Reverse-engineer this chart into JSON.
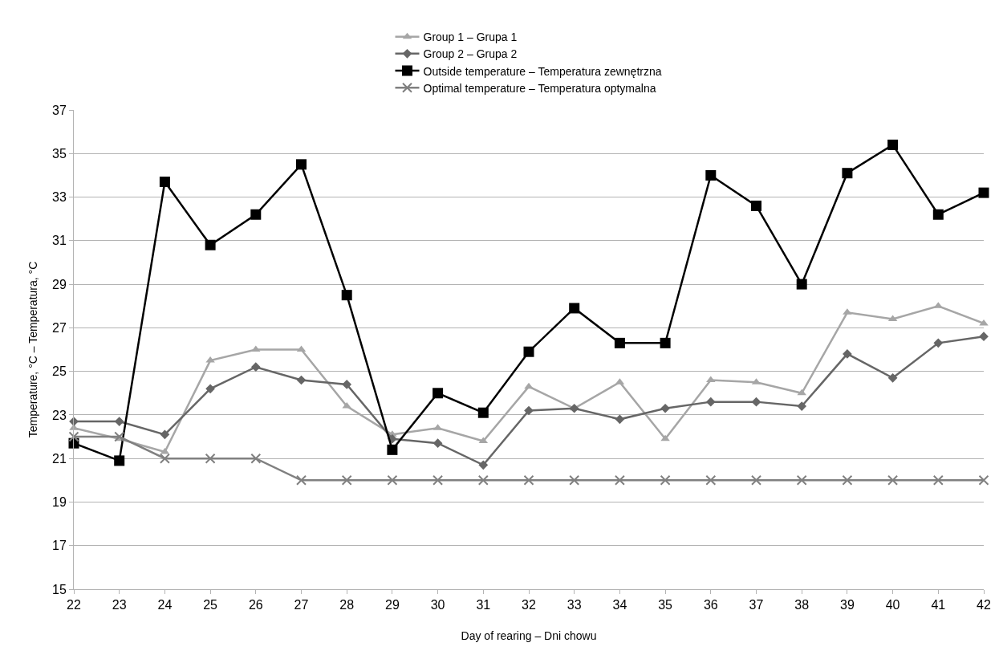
{
  "chart_data": {
    "type": "line",
    "xlabel": "Day of rearing – Dni chowu",
    "ylabel": "Temperature, °C – Temperatura, °C",
    "x": [
      22,
      23,
      24,
      25,
      26,
      27,
      28,
      29,
      30,
      31,
      32,
      33,
      34,
      35,
      36,
      37,
      38,
      39,
      40,
      41,
      42
    ],
    "xlim": [
      22,
      42
    ],
    "xticks": [
      22,
      23,
      24,
      25,
      26,
      27,
      28,
      29,
      30,
      31,
      32,
      33,
      34,
      35,
      36,
      37,
      38,
      39,
      40,
      41,
      42
    ],
    "ylim": [
      15,
      37
    ],
    "yticks": [
      15,
      17,
      19,
      21,
      23,
      25,
      27,
      29,
      31,
      33,
      35,
      37
    ],
    "grid": "y",
    "legend": "top",
    "line_style": "solid",
    "series": [
      {
        "name": "Group 1 – Grupa 1",
        "color": "#a6a6a6",
        "marker": "triangle",
        "values": [
          22.4,
          21.9,
          21.3,
          25.5,
          26.0,
          26.0,
          23.4,
          22.1,
          22.4,
          21.8,
          24.3,
          23.3,
          24.5,
          21.9,
          24.6,
          24.5,
          24.0,
          27.7,
          27.4,
          28.0,
          27.2
        ]
      },
      {
        "name": "Group 2 – Grupa 2",
        "color": "#666666",
        "marker": "diamond",
        "values": [
          22.7,
          22.7,
          22.1,
          24.2,
          25.2,
          24.6,
          24.4,
          21.9,
          21.7,
          20.7,
          23.2,
          23.3,
          22.8,
          23.3,
          23.6,
          23.6,
          23.4,
          25.8,
          24.7,
          26.3,
          26.6
        ]
      },
      {
        "name": "Outside temperature – Temperatura zewnętrzna",
        "color": "#000000",
        "marker": "square",
        "values": [
          21.7,
          20.9,
          33.7,
          30.8,
          32.2,
          34.5,
          28.5,
          21.4,
          24.0,
          23.1,
          25.9,
          27.9,
          26.3,
          26.3,
          34.0,
          32.6,
          29.0,
          34.1,
          35.4,
          32.2,
          33.2
        ]
      },
      {
        "name": "Optimal temperature – Temperatura optymalna",
        "color": "#808080",
        "marker": "cross",
        "values": [
          22,
          22,
          21,
          21,
          21,
          20,
          20,
          20,
          20,
          20,
          20,
          20,
          20,
          20,
          20,
          20,
          20,
          20,
          20,
          20,
          20
        ]
      }
    ]
  }
}
